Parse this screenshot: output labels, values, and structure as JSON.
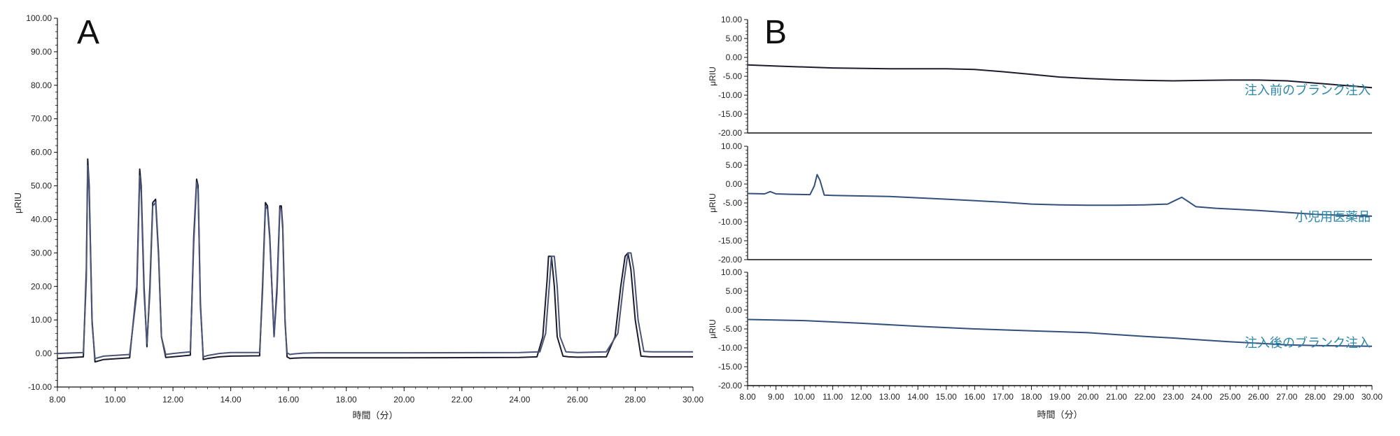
{
  "chart_data": [
    {
      "panel": "A",
      "type": "line",
      "xlabel": "時間（分）",
      "ylabel": "μRIU",
      "xlim": [
        8,
        30
      ],
      "ylim": [
        -10,
        100
      ],
      "xticks": [
        "8.00",
        "10.00",
        "12.00",
        "14.00",
        "16.00",
        "18.00",
        "20.00",
        "22.00",
        "24.00",
        "26.00",
        "28.00",
        "30.00"
      ],
      "yticks": [
        "-10.00",
        "0.00",
        "10.00",
        "20.00",
        "30.00",
        "40.00",
        "50.00",
        "60.00",
        "70.00",
        "80.00",
        "90.00",
        "100.00"
      ],
      "series": [
        {
          "color": "#1b1c2e",
          "x": [
            8,
            8.9,
            9.0,
            9.05,
            9.1,
            9.2,
            9.3,
            9.6,
            10.5,
            10.75,
            10.85,
            10.9,
            11.0,
            11.1,
            11.2,
            11.3,
            11.4,
            11.5,
            11.6,
            11.75,
            12.0,
            12.6,
            12.72,
            12.82,
            12.87,
            12.95,
            13.05,
            13.2,
            13.6,
            14.0,
            15.0,
            15.1,
            15.2,
            15.27,
            15.35,
            15.5,
            15.6,
            15.7,
            15.75,
            15.8,
            15.88,
            15.95,
            16.05,
            16.2,
            16.5,
            17,
            20,
            24,
            24.6,
            24.8,
            24.95,
            25.0,
            25.1,
            25.2,
            25.3,
            25.5,
            25.7,
            26,
            27,
            27.3,
            27.5,
            27.65,
            27.75,
            27.85,
            28,
            28.2,
            28.5,
            29,
            30
          ],
          "y": [
            -1.5,
            -1,
            25,
            58,
            50,
            10,
            -2.5,
            -1.8,
            -1.3,
            20,
            55,
            50,
            20,
            2,
            20,
            45,
            46,
            30,
            5,
            -1.2,
            -1,
            -0.5,
            35,
            52,
            50,
            15,
            -1.8,
            -1.5,
            -1,
            -0.8,
            -0.7,
            20,
            45,
            44,
            35,
            5,
            20,
            44,
            44,
            38,
            10,
            -1,
            -1.5,
            -1.4,
            -1.3,
            -1.3,
            -1.3,
            -1.2,
            -1,
            5,
            22,
            29,
            29,
            20,
            5,
            -0.8,
            -1,
            -1.1,
            -1,
            5,
            20,
            29,
            30,
            25,
            10,
            -0.8,
            -1,
            -1,
            -1
          ]
        },
        {
          "color": "#4a5578",
          "x": [
            8,
            8.9,
            9.0,
            9.05,
            9.1,
            9.2,
            9.3,
            9.6,
            10.5,
            10.75,
            10.85,
            10.9,
            11.0,
            11.1,
            11.2,
            11.3,
            11.4,
            11.5,
            11.6,
            11.75,
            12.0,
            12.6,
            12.72,
            12.82,
            12.87,
            12.95,
            13.05,
            13.2,
            13.6,
            14.0,
            15.0,
            15.1,
            15.2,
            15.27,
            15.35,
            15.5,
            15.6,
            15.7,
            15.75,
            15.8,
            15.88,
            15.95,
            16.05,
            16.2,
            16.5,
            17,
            20,
            24,
            24.7,
            24.9,
            25.05,
            25.1,
            25.2,
            25.3,
            25.4,
            25.6,
            25.8,
            26,
            27,
            27.4,
            27.6,
            27.75,
            27.85,
            27.95,
            28.1,
            28.3,
            28.6,
            29,
            30
          ],
          "y": [
            0,
            0.3,
            22,
            56,
            48,
            9,
            -1.5,
            -0.8,
            -0.3,
            18,
            53,
            48,
            18,
            3,
            18,
            44,
            45,
            29,
            5,
            -0.3,
            0,
            0.5,
            33,
            51,
            49,
            14,
            -1,
            -0.6,
            0,
            0.3,
            0.3,
            18,
            44,
            43,
            34,
            5,
            18,
            43,
            43,
            37,
            9,
            0.2,
            -0.3,
            -0.1,
            0.1,
            0.2,
            0.2,
            0.3,
            0.5,
            6,
            23,
            29,
            29,
            20,
            5,
            0.5,
            0.4,
            0.3,
            0.5,
            6,
            21,
            30,
            30,
            25,
            10,
            0.6,
            0.5,
            0.5,
            0.5
          ]
        }
      ]
    },
    {
      "panel": "B",
      "type": "line",
      "xlabel": "時間（分）",
      "ylabel": "μRIU",
      "xlim": [
        8,
        30
      ],
      "xticks": [
        "8.00",
        "9.00",
        "10.00",
        "11.00",
        "12.00",
        "13.00",
        "14.00",
        "15.00",
        "16.00",
        "17.00",
        "18.00",
        "19.00",
        "20.00",
        "21.00",
        "22.00",
        "23.00",
        "24.00",
        "25.00",
        "26.00",
        "27.00",
        "28.00",
        "29.00",
        "30.00"
      ],
      "subplots": [
        {
          "label": "注入前のブランク注入",
          "color": "#1b1c2e",
          "ylim": [
            -20,
            10
          ],
          "yticks": [
            "10.00",
            "5.00",
            "0.00",
            "-5.00",
            "-10.00",
            "-15.00",
            "-20.00"
          ],
          "x": [
            8,
            9,
            11,
            13,
            15,
            16,
            17,
            18,
            19,
            20,
            21,
            22,
            23,
            24,
            25,
            26,
            27,
            28,
            29,
            30
          ],
          "y": [
            -2,
            -2.3,
            -2.8,
            -3,
            -3,
            -3.2,
            -3.8,
            -4.5,
            -5.2,
            -5.6,
            -5.9,
            -6.1,
            -6.2,
            -6.1,
            -6,
            -6,
            -6.2,
            -6.8,
            -7.4,
            -8
          ]
        },
        {
          "label": "小児用医薬品",
          "color": "#33507d",
          "ylim": [
            -20,
            10
          ],
          "yticks": [
            "10.00",
            "5.00",
            "0.00",
            "-5.00",
            "-10.00",
            "-15.00",
            "-20.00"
          ],
          "x": [
            8,
            8.6,
            8.8,
            9.0,
            9.5,
            10.2,
            10.35,
            10.45,
            10.55,
            10.7,
            11,
            13,
            15,
            17,
            18,
            19,
            20,
            21,
            22,
            22.8,
            23.1,
            23.3,
            23.5,
            23.8,
            24.5,
            26,
            27,
            28,
            29,
            30
          ],
          "y": [
            -2.5,
            -2.6,
            -2,
            -2.6,
            -2.7,
            -2.8,
            -0.5,
            2.5,
            1,
            -2.9,
            -3,
            -3.3,
            -4,
            -4.8,
            -5.3,
            -5.5,
            -5.6,
            -5.6,
            -5.5,
            -5.3,
            -4.2,
            -3.5,
            -4.5,
            -6,
            -6.4,
            -7,
            -7.5,
            -8,
            -8.3,
            -8.5
          ]
        },
        {
          "label": "注入後のブランク注入",
          "color": "#33507d",
          "ylim": [
            -20,
            10
          ],
          "yticks": [
            "10.00",
            "5.00",
            "0.00",
            "-5.00",
            "-10.00",
            "-15.00",
            "-20.00"
          ],
          "x": [
            8,
            10,
            12,
            14,
            16,
            18,
            20,
            21,
            22,
            23,
            24,
            25,
            26,
            27,
            28,
            29,
            30
          ],
          "y": [
            -2.5,
            -2.8,
            -3.5,
            -4.3,
            -5,
            -5.5,
            -6,
            -6.5,
            -7,
            -7.4,
            -7.9,
            -8.4,
            -8.8,
            -9.2,
            -9.4,
            -9.5,
            -9.6
          ]
        }
      ]
    }
  ]
}
